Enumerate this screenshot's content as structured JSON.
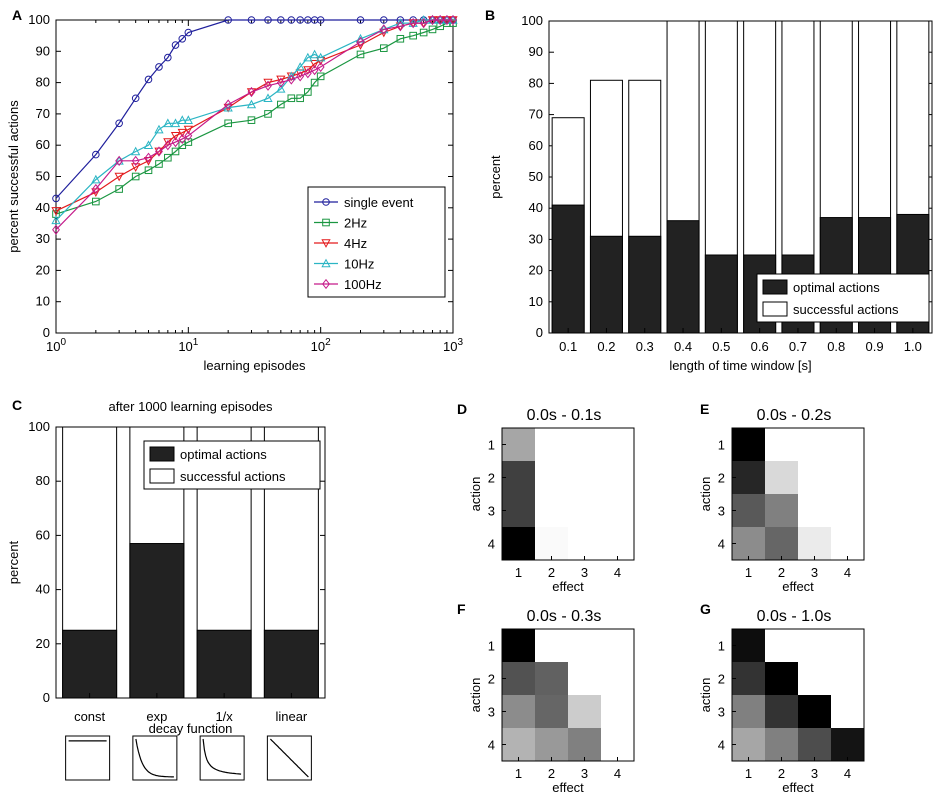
{
  "chart_data": [
    {
      "panel": "A",
      "type": "line",
      "xscale": "log",
      "xlabel": "learning episodes",
      "ylabel": "percent successful actions",
      "xlim": [
        1,
        1000
      ],
      "ylim": [
        0,
        100
      ],
      "xticks": [
        "10^0",
        "10^1",
        "10^2",
        "10^3"
      ],
      "yticks": [
        0,
        10,
        20,
        30,
        40,
        50,
        60,
        70,
        80,
        90,
        100
      ],
      "legend_position": "center-right",
      "series": [
        {
          "name": "single event",
          "color": "#1f1f9c",
          "marker": "circle",
          "x": [
            1,
            2,
            3,
            4,
            5,
            6,
            7,
            8,
            9,
            10,
            20,
            30,
            40,
            50,
            60,
            70,
            80,
            90,
            100,
            200,
            300,
            400,
            500,
            600,
            700,
            800,
            900,
            1000
          ],
          "y": [
            43,
            57,
            67,
            75,
            81,
            85,
            88,
            92,
            94,
            96,
            100,
            100,
            100,
            100,
            100,
            100,
            100,
            100,
            100,
            100,
            100,
            100,
            100,
            100,
            100,
            100,
            100,
            100
          ]
        },
        {
          "name": "2Hz",
          "color": "#1a9641",
          "marker": "square",
          "x": [
            1,
            2,
            3,
            4,
            5,
            6,
            7,
            8,
            9,
            10,
            20,
            30,
            40,
            50,
            60,
            70,
            80,
            90,
            100,
            200,
            300,
            400,
            500,
            600,
            700,
            800,
            900,
            1000
          ],
          "y": [
            38,
            42,
            46,
            50,
            52,
            54,
            56,
            58,
            60,
            61,
            67,
            68,
            70,
            73,
            75,
            75,
            77,
            80,
            82,
            89,
            91,
            94,
            95,
            96,
            97,
            98,
            99,
            99
          ]
        },
        {
          "name": "4Hz",
          "color": "#e31a1c",
          "marker": "triangle-down",
          "x": [
            1,
            2,
            3,
            4,
            5,
            6,
            7,
            8,
            9,
            10,
            20,
            30,
            40,
            50,
            60,
            70,
            80,
            90,
            100,
            200,
            300,
            400,
            500,
            600,
            700,
            800,
            900,
            1000
          ],
          "y": [
            39,
            45,
            50,
            53,
            55,
            58,
            61,
            63,
            64,
            65,
            72,
            77,
            80,
            81,
            82,
            83,
            84,
            86,
            87,
            92,
            96,
            98,
            99,
            99,
            100,
            100,
            100,
            100
          ]
        },
        {
          "name": "10Hz",
          "color": "#2bb5c4",
          "marker": "triangle-up",
          "x": [
            1,
            2,
            3,
            4,
            5,
            6,
            7,
            8,
            9,
            10,
            20,
            30,
            40,
            50,
            60,
            70,
            80,
            90,
            100,
            200,
            300,
            400,
            500,
            600,
            700,
            800,
            900,
            1000
          ],
          "y": [
            36,
            49,
            55,
            58,
            60,
            65,
            67,
            67,
            68,
            68,
            72,
            73,
            75,
            78,
            82,
            85,
            88,
            89,
            88,
            94,
            97,
            99,
            99,
            100,
            100,
            100,
            100,
            100
          ]
        },
        {
          "name": "100Hz",
          "color": "#c51b8a",
          "marker": "diamond",
          "x": [
            1,
            2,
            3,
            4,
            5,
            6,
            7,
            8,
            9,
            10,
            20,
            30,
            40,
            50,
            60,
            70,
            80,
            90,
            100,
            200,
            300,
            400,
            500,
            600,
            700,
            800,
            900,
            1000
          ],
          "y": [
            33,
            46,
            55,
            55,
            56,
            58,
            60,
            61,
            62,
            63,
            73,
            77,
            79,
            80,
            81,
            82,
            83,
            84,
            85,
            93,
            97,
            98,
            99,
            99,
            100,
            100,
            100,
            100
          ]
        }
      ]
    },
    {
      "panel": "B",
      "type": "bar",
      "stacked": "overlay",
      "xlabel": "length of time window [s]",
      "ylabel": "percent",
      "ylim": [
        0,
        100
      ],
      "yticks": [
        0,
        10,
        20,
        30,
        40,
        50,
        60,
        70,
        80,
        90,
        100
      ],
      "categories": [
        "0.1",
        "0.2",
        "0.3",
        "0.4",
        "0.5",
        "0.6",
        "0.7",
        "0.8",
        "0.9",
        "1.0"
      ],
      "legend_position": "bottom-right",
      "series": [
        {
          "name": "successful actions",
          "color": "#ffffff",
          "values": [
            69,
            81,
            81,
            100,
            100,
            100,
            100,
            100,
            100,
            100
          ]
        },
        {
          "name": "optimal actions",
          "color": "#222222",
          "values": [
            41,
            31,
            31,
            36,
            25,
            25,
            25,
            37,
            37,
            38
          ]
        }
      ]
    },
    {
      "panel": "C",
      "type": "bar",
      "stacked": "overlay",
      "title": "after 1000 learning episodes",
      "xlabel": "decay function",
      "ylabel": "percent",
      "ylim": [
        0,
        100
      ],
      "yticks": [
        0,
        20,
        40,
        60,
        80,
        100
      ],
      "categories": [
        "const",
        "exp",
        "1/x",
        "linear"
      ],
      "legend_position": "top-right",
      "series": [
        {
          "name": "successful actions",
          "color": "#ffffff",
          "values": [
            100,
            100,
            100,
            100
          ]
        },
        {
          "name": "optimal actions",
          "color": "#222222",
          "values": [
            25,
            57,
            25,
            25
          ]
        }
      ],
      "decay_shapes": [
        "const",
        "exp",
        "1/x",
        "linear"
      ]
    },
    {
      "panel": "D",
      "type": "heatmap",
      "title": "0.0s - 0.1s",
      "xlabel": "effect",
      "ylabel": "action",
      "x_categories": [
        "1",
        "2",
        "3",
        "4"
      ],
      "y_categories": [
        "1",
        "2",
        "3",
        "4"
      ],
      "values": [
        [
          0.35,
          0,
          0,
          0
        ],
        [
          0.75,
          0,
          0,
          0
        ],
        [
          0.75,
          0,
          0,
          0
        ],
        [
          1.0,
          0.02,
          0,
          0
        ]
      ]
    },
    {
      "panel": "E",
      "type": "heatmap",
      "title": "0.0s - 0.2s",
      "xlabel": "effect",
      "ylabel": "action",
      "x_categories": [
        "1",
        "2",
        "3",
        "4"
      ],
      "y_categories": [
        "1",
        "2",
        "3",
        "4"
      ],
      "values": [
        [
          1.0,
          0,
          0,
          0
        ],
        [
          0.85,
          0.15,
          0,
          0
        ],
        [
          0.65,
          0.5,
          0,
          0
        ],
        [
          0.45,
          0.6,
          0.08,
          0
        ]
      ]
    },
    {
      "panel": "F",
      "type": "heatmap",
      "title": "0.0s - 0.3s",
      "xlabel": "effect",
      "ylabel": "action",
      "x_categories": [
        "1",
        "2",
        "3",
        "4"
      ],
      "y_categories": [
        "1",
        "2",
        "3",
        "4"
      ],
      "values": [
        [
          1.0,
          0,
          0,
          0
        ],
        [
          0.68,
          0.62,
          0,
          0
        ],
        [
          0.45,
          0.6,
          0.2,
          0
        ],
        [
          0.3,
          0.4,
          0.5,
          0
        ]
      ]
    },
    {
      "panel": "G",
      "type": "heatmap",
      "title": "0.0s - 1.0s",
      "xlabel": "effect",
      "ylabel": "action",
      "x_categories": [
        "1",
        "2",
        "3",
        "4"
      ],
      "y_categories": [
        "1",
        "2",
        "3",
        "4"
      ],
      "values": [
        [
          0.95,
          0,
          0,
          0
        ],
        [
          0.8,
          1.0,
          0,
          0
        ],
        [
          0.5,
          0.8,
          1.0,
          0
        ],
        [
          0.35,
          0.5,
          0.7,
          0.92
        ]
      ]
    }
  ]
}
